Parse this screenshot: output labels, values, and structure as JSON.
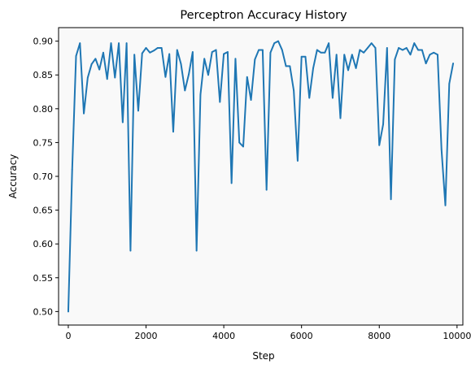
{
  "chart_data": {
    "type": "line",
    "title": "Perceptron Accuracy History",
    "xlabel": "Step",
    "ylabel": "Accuracy",
    "xlim": [
      -250,
      10150
    ],
    "ylim": [
      0.48,
      0.92
    ],
    "xticks": [
      0,
      2000,
      4000,
      6000,
      8000,
      10000
    ],
    "xtick_labels": [
      "0",
      "2000",
      "4000",
      "6000",
      "8000",
      "10000"
    ],
    "yticks": [
      0.5,
      0.55,
      0.6,
      0.65,
      0.7,
      0.75,
      0.8,
      0.85,
      0.9
    ],
    "ytick_labels": [
      "0.50",
      "0.55",
      "0.60",
      "0.65",
      "0.70",
      "0.75",
      "0.80",
      "0.85",
      "0.90"
    ],
    "grid": false,
    "colors": {
      "line": "#1f77b4",
      "plot_bg": "#f9f9f9",
      "axis": "#000000"
    },
    "series": [
      {
        "x": [
          0,
          100,
          200,
          300,
          400,
          500,
          600,
          700,
          800,
          900,
          1000,
          1100,
          1200,
          1300,
          1400,
          1500,
          1600,
          1700,
          1800,
          1900,
          2000,
          2100,
          2200,
          2300,
          2400,
          2500,
          2600,
          2700,
          2800,
          2900,
          3000,
          3100,
          3200,
          3300,
          3400,
          3500,
          3600,
          3700,
          3800,
          3900,
          4000,
          4100,
          4200,
          4300,
          4400,
          4500,
          4600,
          4700,
          4800,
          4900,
          5000,
          5100,
          5200,
          5300,
          5400,
          5500,
          5600,
          5700,
          5800,
          5900,
          6000,
          6100,
          6200,
          6300,
          6400,
          6500,
          6600,
          6700,
          6800,
          6900,
          7000,
          7100,
          7200,
          7300,
          7400,
          7500,
          7600,
          7700,
          7800,
          7900,
          8000,
          8100,
          8200,
          8300,
          8400,
          8500,
          8600,
          8700,
          8800,
          8900,
          9000,
          9100,
          9200,
          9300,
          9400,
          9500,
          9600,
          9700,
          9800,
          9900
        ],
        "y": [
          0.5,
          0.71,
          0.878,
          0.897,
          0.793,
          0.846,
          0.866,
          0.874,
          0.858,
          0.883,
          0.844,
          0.897,
          0.846,
          0.897,
          0.78,
          0.897,
          0.59,
          0.88,
          0.797,
          0.882,
          0.89,
          0.883,
          0.886,
          0.89,
          0.89,
          0.847,
          0.881,
          0.766,
          0.887,
          0.866,
          0.827,
          0.851,
          0.884,
          0.59,
          0.821,
          0.874,
          0.85,
          0.884,
          0.887,
          0.81,
          0.881,
          0.884,
          0.69,
          0.874,
          0.75,
          0.744,
          0.847,
          0.813,
          0.873,
          0.887,
          0.887,
          0.68,
          0.883,
          0.897,
          0.9,
          0.887,
          0.863,
          0.863,
          0.827,
          0.723,
          0.877,
          0.877,
          0.816,
          0.86,
          0.887,
          0.883,
          0.883,
          0.897,
          0.816,
          0.88,
          0.786,
          0.88,
          0.857,
          0.88,
          0.86,
          0.887,
          0.883,
          0.89,
          0.897,
          0.89,
          0.746,
          0.777,
          0.89,
          0.666,
          0.873,
          0.89,
          0.887,
          0.89,
          0.88,
          0.897,
          0.887,
          0.887,
          0.867,
          0.88,
          0.883,
          0.88,
          0.74,
          0.657,
          0.837,
          0.867
        ]
      }
    ]
  }
}
